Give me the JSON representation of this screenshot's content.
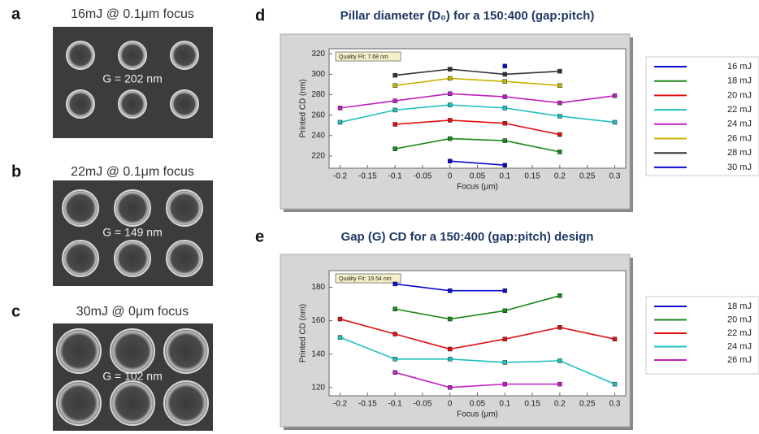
{
  "panels": [
    {
      "letter": "a",
      "title": "16mJ @ 0.1μm focus",
      "label": "G = 202 nm"
    },
    {
      "letter": "b",
      "title": "22mJ @ 0.1μm focus",
      "label": "G = 149 nm"
    },
    {
      "letter": "c",
      "title": "30mJ @ 0μm focus",
      "label": "G = 102 nm"
    }
  ],
  "chart_data": [
    {
      "type": "line",
      "panel": "d",
      "title": "Pillar diameter (D₀)  for a 150:400 (gap:pitch)",
      "annotation": "Quality Fit: 7.68 nm",
      "x_label": "Focus (μm)",
      "y_label": "Printed CD (nm)",
      "xlim": [
        -0.22,
        0.32
      ],
      "xticks": [
        -0.2,
        -0.15,
        -0.1,
        -0.05,
        0,
        0.05,
        0.1,
        0.15,
        0.2,
        0.25,
        0.3
      ],
      "ylim": [
        208,
        325
      ],
      "yticks": [
        220,
        240,
        260,
        280,
        300,
        320
      ],
      "series": [
        {
          "name": "16 mJ",
          "color": "#0a0ad0",
          "x": [
            0.1
          ],
          "values": [
            308
          ]
        },
        {
          "name": "18 mJ",
          "color": "#1a8a1a",
          "x": [
            -0.1,
            0,
            0.1,
            0.2
          ],
          "values": [
            227,
            237,
            235,
            224
          ]
        },
        {
          "name": "20 mJ",
          "color": "#e01010",
          "x": [
            -0.1,
            0,
            0.1,
            0.2
          ],
          "values": [
            251,
            255,
            252,
            241
          ]
        },
        {
          "name": "22 mJ",
          "color": "#20bfbf",
          "x": [
            -0.2,
            -0.1,
            0,
            0.1,
            0.2,
            0.3
          ],
          "values": [
            253,
            265,
            270,
            267,
            259,
            253
          ]
        },
        {
          "name": "24 mJ",
          "color": "#c020c0",
          "x": [
            -0.2,
            -0.1,
            0,
            0.1,
            0.2,
            0.3
          ],
          "values": [
            267,
            274,
            281,
            278,
            272,
            279
          ]
        },
        {
          "name": "26 mJ",
          "color": "#c8b400",
          "x": [
            -0.1,
            0,
            0.1,
            0.2
          ],
          "values": [
            289,
            296,
            293,
            289
          ]
        },
        {
          "name": "28 mJ",
          "color": "#333333",
          "x": [
            -0.1,
            0,
            0.1,
            0.2
          ],
          "values": [
            299,
            305,
            300,
            303
          ]
        },
        {
          "name": "30 mJ",
          "color": "#0a0ad0",
          "x": [
            0,
            0.1
          ],
          "values": [
            215,
            211
          ]
        }
      ]
    },
    {
      "type": "line",
      "panel": "e",
      "title": "Gap (G) CD for a 150:400 (gap:pitch) design",
      "annotation": "Quality Fit: 19.54 nm",
      "x_label": "Focus (μm)",
      "y_label": "Printed CD (nm)",
      "xlim": [
        -0.22,
        0.32
      ],
      "xticks": [
        -0.2,
        -0.15,
        -0.1,
        -0.05,
        0,
        0.05,
        0.1,
        0.15,
        0.2,
        0.25,
        0.3
      ],
      "ylim": [
        115,
        190
      ],
      "yticks": [
        120,
        140,
        160,
        180
      ],
      "series": [
        {
          "name": "18 mJ",
          "color": "#0a0ad0",
          "x": [
            -0.1,
            0,
            0.1
          ],
          "values": [
            182,
            178,
            178
          ]
        },
        {
          "name": "20 mJ",
          "color": "#1a8a1a",
          "x": [
            -0.1,
            0,
            0.1,
            0.2
          ],
          "values": [
            167,
            161,
            166,
            175
          ]
        },
        {
          "name": "22 mJ",
          "color": "#e01010",
          "x": [
            -0.2,
            -0.1,
            0,
            0.1,
            0.2,
            0.3
          ],
          "values": [
            161,
            152,
            143,
            149,
            156,
            149
          ]
        },
        {
          "name": "24 mJ",
          "color": "#20bfbf",
          "x": [
            -0.2,
            -0.1,
            0,
            0.1,
            0.2,
            0.3
          ],
          "values": [
            150,
            137,
            137,
            135,
            136,
            122
          ]
        },
        {
          "name": "26 mJ",
          "color": "#c020c0",
          "x": [
            -0.1,
            0,
            0.1,
            0.2
          ],
          "values": [
            129,
            120,
            122,
            122
          ]
        }
      ]
    }
  ]
}
